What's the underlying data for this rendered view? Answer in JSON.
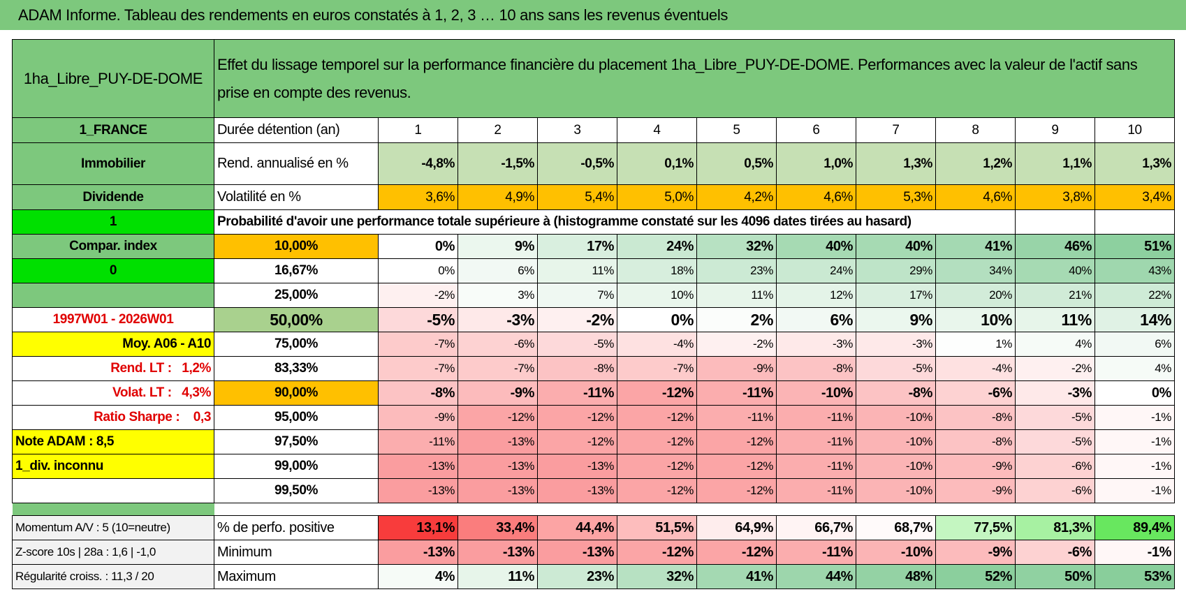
{
  "title": "ADAM Informe. Tableau des rendements en euros constatés à 1, 2, 3 … 10 ans sans les revenus éventuels",
  "header": {
    "name": "1ha_Libre_PUY-DE-DOME",
    "description": "Effet du lissage temporel sur la performance financière du placement 1ha_Libre_PUY-DE-DOME. Performances avec la valeur de l'actif sans prise en compte des revenus."
  },
  "side_labels": [
    "1_FRANCE",
    "Immobilier",
    "Dividende",
    "1",
    "Compar. index",
    "0",
    null,
    "1997W01 - 2026W01",
    "Moy. A06 - A10",
    "Rend. LT :   1,2%",
    "Volat. LT :   4,3%",
    "Ratio Sharpe :    0,3",
    "Note ADAM : 8,5",
    "1_div. inconnu",
    null
  ],
  "rows": [
    {
      "label": "Durée détention (an)",
      "cells": [
        "1",
        "2",
        "3",
        "4",
        "5",
        "6",
        "7",
        "8",
        "9",
        "10"
      ]
    },
    {
      "label": "Rend. annualisé en %",
      "cells": [
        "-4,8%",
        "-1,5%",
        "-0,5%",
        "0,1%",
        "0,5%",
        "1,0%",
        "1,3%",
        "1,2%",
        "1,1%",
        "1,3%"
      ]
    },
    {
      "label": "Volatilité en %",
      "cells": [
        "3,6%",
        "4,9%",
        "5,4%",
        "5,0%",
        "4,2%",
        "4,6%",
        "5,3%",
        "4,6%",
        "3,8%",
        "3,4%"
      ]
    }
  ],
  "probability_caption": "Probabilité d'avoir une performance totale supérieure à (histogramme constaté sur les 4096 dates tirées au hasard)",
  "percentiles": [
    {
      "label": "10,00%",
      "cells": [
        "0%",
        "9%",
        "17%",
        "24%",
        "32%",
        "40%",
        "40%",
        "41%",
        "46%",
        "51%"
      ]
    },
    {
      "label": "16,67%",
      "cells": [
        "0%",
        "6%",
        "11%",
        "18%",
        "23%",
        "24%",
        "29%",
        "34%",
        "40%",
        "43%"
      ]
    },
    {
      "label": "25,00%",
      "cells": [
        "-2%",
        "3%",
        "7%",
        "10%",
        "11%",
        "12%",
        "17%",
        "20%",
        "21%",
        "22%"
      ]
    },
    {
      "label": "50,00%",
      "cells": [
        "-5%",
        "-3%",
        "-2%",
        "0%",
        "2%",
        "6%",
        "9%",
        "10%",
        "11%",
        "14%"
      ]
    },
    {
      "label": "75,00%",
      "cells": [
        "-7%",
        "-6%",
        "-5%",
        "-4%",
        "-2%",
        "-3%",
        "-3%",
        "1%",
        "4%",
        "6%"
      ]
    },
    {
      "label": "83,33%",
      "cells": [
        "-7%",
        "-7%",
        "-8%",
        "-7%",
        "-9%",
        "-8%",
        "-5%",
        "-4%",
        "-2%",
        "4%"
      ]
    },
    {
      "label": "90,00%",
      "cells": [
        "-8%",
        "-9%",
        "-11%",
        "-12%",
        "-11%",
        "-10%",
        "-8%",
        "-6%",
        "-3%",
        "0%"
      ]
    },
    {
      "label": "95,00%",
      "cells": [
        "-9%",
        "-12%",
        "-12%",
        "-12%",
        "-11%",
        "-11%",
        "-10%",
        "-8%",
        "-5%",
        "-1%"
      ]
    },
    {
      "label": "97,50%",
      "cells": [
        "-11%",
        "-13%",
        "-12%",
        "-12%",
        "-12%",
        "-11%",
        "-10%",
        "-8%",
        "-5%",
        "-1%"
      ]
    },
    {
      "label": "99,00%",
      "cells": [
        "-13%",
        "-13%",
        "-13%",
        "-12%",
        "-12%",
        "-11%",
        "-10%",
        "-9%",
        "-6%",
        "-1%"
      ]
    },
    {
      "label": "99,50%",
      "cells": [
        "-13%",
        "-13%",
        "-13%",
        "-12%",
        "-12%",
        "-11%",
        "-10%",
        "-9%",
        "-6%",
        "-1%"
      ]
    }
  ],
  "summary": [
    {
      "side": "Momentum A/V : 5 (10=neutre)",
      "label": "% de perfo. positive",
      "cells": [
        "13,1%",
        "33,4%",
        "44,4%",
        "51,5%",
        "64,9%",
        "66,7%",
        "68,7%",
        "77,5%",
        "81,3%",
        "89,4%"
      ]
    },
    {
      "side": "Z-score 10s | 28a : 1,6 | -1,0",
      "label": "Minimum",
      "cells": [
        "-13%",
        "-13%",
        "-13%",
        "-12%",
        "-12%",
        "-11%",
        "-10%",
        "-9%",
        "-6%",
        "-1%"
      ]
    },
    {
      "side": "Régularité croiss. : 11,3 / 20",
      "label": "Maximum",
      "cells": [
        "4%",
        "11%",
        "23%",
        "32%",
        "41%",
        "44%",
        "48%",
        "52%",
        "50%",
        "53%"
      ]
    }
  ]
}
